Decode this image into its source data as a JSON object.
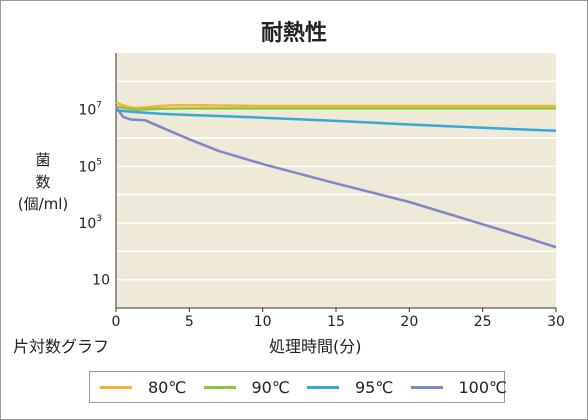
{
  "chart_data": {
    "type": "line",
    "title": "耐熱性",
    "ylabel_lines": [
      "菌",
      "数",
      "(個/ml)"
    ],
    "xlabel": "処理時間(分)",
    "scale_note": "片対数グラフ",
    "xlim": [
      0,
      30
    ],
    "ylim": [
      1,
      1000000000
    ],
    "yscale": "log",
    "x_ticks": [
      0,
      5,
      10,
      15,
      20,
      25,
      30
    ],
    "y_ticks": [
      {
        "base": "10",
        "exp": "7",
        "value": 10000000
      },
      {
        "base": "10",
        "exp": "5",
        "value": 100000
      },
      {
        "base": "10",
        "exp": "3",
        "value": 1000
      },
      {
        "base": "10",
        "exp": "",
        "value": 10
      }
    ],
    "grid": true,
    "legend_position": "bottom",
    "series": [
      {
        "name": "80℃",
        "color": "#f5b335",
        "x": [
          0,
          0.5,
          1,
          1.5,
          2,
          3,
          4,
          5,
          7,
          10,
          15,
          20,
          25,
          30
        ],
        "y": [
          18000000,
          14000000,
          12000000,
          11500000,
          12000000,
          13500000,
          14500000,
          14500000,
          14000000,
          13500000,
          13500000,
          13500000,
          13500000,
          13500000
        ]
      },
      {
        "name": "90℃",
        "color": "#8cc63f",
        "x": [
          0,
          0.5,
          1,
          1.5,
          2,
          3,
          5,
          10,
          15,
          20,
          25,
          30
        ],
        "y": [
          13000000,
          11500000,
          10500000,
          10000000,
          10200000,
          10800000,
          11000000,
          11000000,
          11000000,
          11000000,
          11000000,
          11000000
        ]
      },
      {
        "name": "95℃",
        "color": "#35a8d9",
        "x": [
          0,
          1,
          2,
          3,
          5,
          7,
          10,
          15,
          20,
          25,
          30
        ],
        "y": [
          9500000,
          8500000,
          7800000,
          7200000,
          6500000,
          6000000,
          5200000,
          4000000,
          3000000,
          2300000,
          1800000
        ]
      },
      {
        "name": "100℃",
        "color": "#7f86c6",
        "x": [
          0,
          0.5,
          1,
          2,
          3,
          5,
          7,
          10,
          15,
          20,
          25,
          28,
          30
        ],
        "y": [
          12000000,
          5500000,
          4500000,
          4200000,
          2500000,
          900000,
          350000,
          120000,
          25000,
          5500.0,
          900,
          300,
          140
        ]
      }
    ]
  }
}
